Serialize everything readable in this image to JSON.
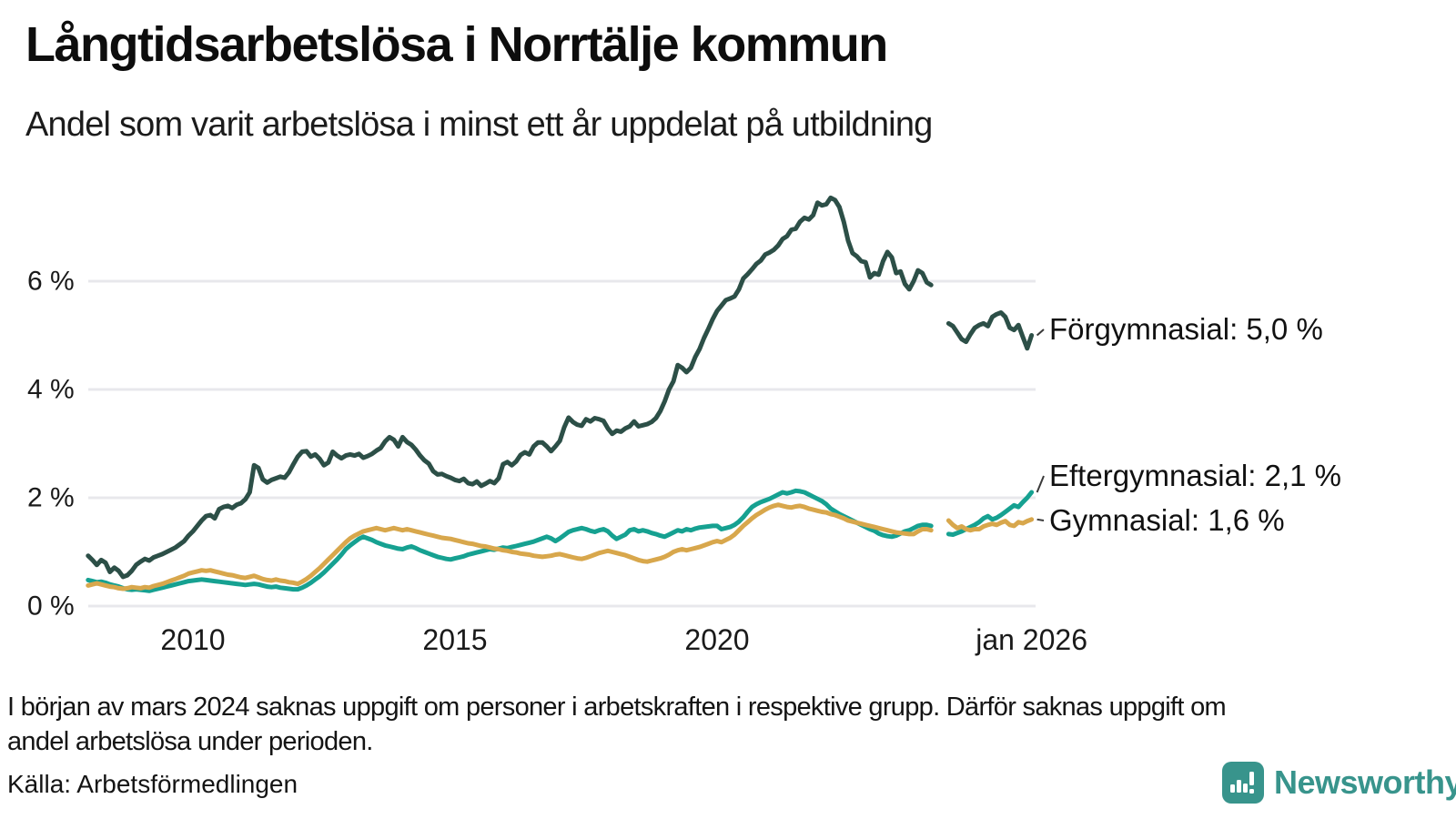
{
  "title": "Långtidsarbetslösa i Norrtälje kommun",
  "subtitle": "Andel som varit arbetslösa i minst ett år uppdelat på utbildning",
  "footnote": {
    "line1": "I början av mars 2024 saknas uppgift om personer i arbetskraften i respektive grupp. Därför saknas uppgift om",
    "line2": "andel arbetslösa under perioden."
  },
  "source": "Källa: Arbetsförmedlingen",
  "brand": {
    "name": "Newsworthy",
    "color": "#38948c"
  },
  "chart_data": {
    "type": "line",
    "title": "Långtidsarbetslösa i Norrtälje kommun",
    "subtitle": "Andel som varit arbetslösa i minst ett år uppdelat på utbildning",
    "x_unit": "month",
    "x_start": "2008-01",
    "x_end": "2026-01",
    "missing_period": "2024-03 till 2024-05",
    "ylim": [
      0,
      7.8
    ],
    "yticks": [
      0,
      2,
      4,
      6
    ],
    "ytick_labels": [
      "0 %",
      "2 %",
      "4 %",
      "6 %"
    ],
    "xticks": [
      {
        "year": 2010,
        "label": "2010"
      },
      {
        "year": 2015,
        "label": "2015"
      },
      {
        "year": 2020,
        "label": "2020"
      },
      {
        "year": 2026,
        "label": "jan 2026"
      }
    ],
    "grid": true,
    "legend_position": "right-end-labels",
    "gridline_color": "#e8e8ec",
    "series": [
      {
        "name": "Förgymnasial",
        "color": "#2c4f47",
        "end_label": "Förgymnasial: 5,0 %",
        "end_value_text": "5,0 %",
        "values": [
          0.93,
          0.85,
          0.76,
          0.85,
          0.8,
          0.63,
          0.71,
          0.65,
          0.54,
          0.57,
          0.65,
          0.76,
          0.82,
          0.87,
          0.84,
          0.9,
          0.93,
          0.96,
          1.0,
          1.04,
          1.08,
          1.14,
          1.2,
          1.3,
          1.38,
          1.48,
          1.58,
          1.66,
          1.68,
          1.62,
          1.79,
          1.83,
          1.85,
          1.81,
          1.87,
          1.9,
          1.97,
          2.1,
          2.6,
          2.55,
          2.34,
          2.28,
          2.33,
          2.36,
          2.39,
          2.37,
          2.47,
          2.62,
          2.76,
          2.85,
          2.86,
          2.76,
          2.8,
          2.72,
          2.6,
          2.65,
          2.85,
          2.78,
          2.73,
          2.78,
          2.8,
          2.78,
          2.81,
          2.74,
          2.77,
          2.81,
          2.87,
          2.92,
          3.04,
          3.12,
          3.07,
          2.95,
          3.12,
          3.03,
          2.98,
          2.89,
          2.78,
          2.69,
          2.63,
          2.49,
          2.43,
          2.44,
          2.4,
          2.37,
          2.33,
          2.31,
          2.35,
          2.27,
          2.25,
          2.3,
          2.22,
          2.26,
          2.31,
          2.27,
          2.36,
          2.62,
          2.66,
          2.6,
          2.67,
          2.79,
          2.84,
          2.8,
          2.95,
          3.02,
          3.02,
          2.95,
          2.86,
          2.95,
          3.05,
          3.3,
          3.48,
          3.4,
          3.35,
          3.33,
          3.45,
          3.41,
          3.47,
          3.45,
          3.42,
          3.28,
          3.18,
          3.24,
          3.22,
          3.28,
          3.32,
          3.41,
          3.32,
          3.34,
          3.36,
          3.4,
          3.47,
          3.6,
          3.78,
          4.0,
          4.15,
          4.45,
          4.4,
          4.32,
          4.4,
          4.6,
          4.75,
          4.95,
          5.12,
          5.3,
          5.45,
          5.55,
          5.65,
          5.68,
          5.72,
          5.85,
          6.05,
          6.13,
          6.22,
          6.32,
          6.38,
          6.49,
          6.53,
          6.58,
          6.66,
          6.78,
          6.83,
          6.95,
          6.97,
          7.1,
          7.17,
          7.14,
          7.22,
          7.45,
          7.4,
          7.42,
          7.54,
          7.5,
          7.37,
          7.1,
          6.75,
          6.52,
          6.46,
          6.37,
          6.35,
          6.07,
          6.15,
          6.12,
          6.37,
          6.54,
          6.44,
          6.15,
          6.18,
          5.95,
          5.85,
          6.0,
          6.2,
          6.15,
          5.98,
          5.93,
          null,
          null,
          null,
          5.22,
          5.17,
          5.05,
          4.93,
          4.88,
          5.02,
          5.14,
          5.19,
          5.22,
          5.17,
          5.34,
          5.39,
          5.42,
          5.34,
          5.14,
          5.1,
          5.19,
          4.97,
          4.76,
          5.0
        ]
      },
      {
        "name": "Eftergymnasial",
        "color": "#16a191",
        "end_label": "Eftergymnasial: 2,1 %",
        "end_value_text": "2,1 %",
        "values": [
          0.48,
          0.46,
          0.44,
          0.45,
          0.43,
          0.4,
          0.38,
          0.36,
          0.33,
          0.31,
          0.3,
          0.31,
          0.3,
          0.29,
          0.28,
          0.3,
          0.32,
          0.34,
          0.36,
          0.38,
          0.4,
          0.42,
          0.44,
          0.46,
          0.47,
          0.48,
          0.49,
          0.48,
          0.47,
          0.46,
          0.45,
          0.44,
          0.43,
          0.42,
          0.41,
          0.4,
          0.39,
          0.4,
          0.41,
          0.4,
          0.38,
          0.36,
          0.35,
          0.36,
          0.34,
          0.33,
          0.32,
          0.31,
          0.31,
          0.34,
          0.38,
          0.43,
          0.49,
          0.55,
          0.62,
          0.7,
          0.78,
          0.86,
          0.95,
          1.05,
          1.12,
          1.18,
          1.24,
          1.28,
          1.25,
          1.22,
          1.18,
          1.15,
          1.12,
          1.1,
          1.08,
          1.06,
          1.05,
          1.08,
          1.1,
          1.07,
          1.03,
          1.0,
          0.97,
          0.94,
          0.91,
          0.89,
          0.87,
          0.86,
          0.88,
          0.9,
          0.92,
          0.95,
          0.97,
          0.99,
          1.01,
          1.03,
          1.05,
          1.04,
          1.06,
          1.08,
          1.07,
          1.09,
          1.11,
          1.13,
          1.15,
          1.17,
          1.19,
          1.22,
          1.25,
          1.28,
          1.25,
          1.2,
          1.25,
          1.31,
          1.37,
          1.4,
          1.42,
          1.44,
          1.42,
          1.39,
          1.37,
          1.4,
          1.42,
          1.38,
          1.3,
          1.24,
          1.28,
          1.32,
          1.4,
          1.42,
          1.38,
          1.4,
          1.38,
          1.35,
          1.33,
          1.3,
          1.28,
          1.32,
          1.36,
          1.4,
          1.38,
          1.42,
          1.4,
          1.43,
          1.45,
          1.46,
          1.47,
          1.48,
          1.48,
          1.42,
          1.44,
          1.46,
          1.5,
          1.56,
          1.64,
          1.74,
          1.83,
          1.88,
          1.92,
          1.95,
          1.98,
          2.02,
          2.06,
          2.1,
          2.08,
          2.1,
          2.13,
          2.12,
          2.1,
          2.06,
          2.02,
          1.98,
          1.94,
          1.88,
          1.8,
          1.75,
          1.7,
          1.66,
          1.62,
          1.58,
          1.54,
          1.5,
          1.46,
          1.42,
          1.39,
          1.34,
          1.31,
          1.29,
          1.28,
          1.3,
          1.34,
          1.38,
          1.4,
          1.44,
          1.48,
          1.5,
          1.5,
          1.48,
          null,
          null,
          null,
          1.33,
          1.32,
          1.35,
          1.38,
          1.42,
          1.46,
          1.5,
          1.55,
          1.62,
          1.66,
          1.6,
          1.63,
          1.68,
          1.74,
          1.8,
          1.86,
          1.83,
          1.92,
          2.0,
          2.1
        ]
      },
      {
        "name": "Gymnasial",
        "color": "#d8a74c",
        "end_label": "Gymnasial: 1,6 %",
        "end_value_text": "1,6 %",
        "values": [
          0.38,
          0.4,
          0.42,
          0.4,
          0.38,
          0.36,
          0.35,
          0.33,
          0.32,
          0.33,
          0.35,
          0.34,
          0.33,
          0.35,
          0.34,
          0.37,
          0.39,
          0.41,
          0.44,
          0.47,
          0.5,
          0.53,
          0.56,
          0.6,
          0.62,
          0.64,
          0.66,
          0.65,
          0.66,
          0.64,
          0.62,
          0.6,
          0.58,
          0.57,
          0.55,
          0.53,
          0.52,
          0.54,
          0.56,
          0.53,
          0.5,
          0.48,
          0.47,
          0.49,
          0.47,
          0.46,
          0.44,
          0.43,
          0.41,
          0.45,
          0.5,
          0.56,
          0.63,
          0.7,
          0.78,
          0.86,
          0.94,
          1.02,
          1.1,
          1.18,
          1.25,
          1.3,
          1.34,
          1.38,
          1.4,
          1.42,
          1.44,
          1.42,
          1.4,
          1.42,
          1.44,
          1.42,
          1.4,
          1.42,
          1.4,
          1.38,
          1.36,
          1.34,
          1.32,
          1.3,
          1.28,
          1.26,
          1.25,
          1.24,
          1.22,
          1.2,
          1.18,
          1.16,
          1.15,
          1.13,
          1.11,
          1.1,
          1.08,
          1.06,
          1.05,
          1.03,
          1.02,
          1.0,
          0.99,
          0.97,
          0.96,
          0.95,
          0.93,
          0.92,
          0.91,
          0.92,
          0.93,
          0.95,
          0.96,
          0.94,
          0.92,
          0.9,
          0.88,
          0.87,
          0.89,
          0.92,
          0.95,
          0.98,
          1.0,
          1.02,
          1.0,
          0.98,
          0.96,
          0.94,
          0.91,
          0.88,
          0.85,
          0.83,
          0.82,
          0.84,
          0.86,
          0.88,
          0.91,
          0.95,
          1.0,
          1.03,
          1.05,
          1.03,
          1.05,
          1.07,
          1.09,
          1.12,
          1.15,
          1.18,
          1.2,
          1.18,
          1.22,
          1.26,
          1.32,
          1.4,
          1.48,
          1.55,
          1.62,
          1.68,
          1.73,
          1.78,
          1.82,
          1.85,
          1.87,
          1.85,
          1.83,
          1.82,
          1.84,
          1.85,
          1.83,
          1.8,
          1.78,
          1.76,
          1.74,
          1.73,
          1.7,
          1.68,
          1.65,
          1.62,
          1.58,
          1.56,
          1.54,
          1.52,
          1.5,
          1.48,
          1.46,
          1.44,
          1.42,
          1.4,
          1.38,
          1.36,
          1.35,
          1.34,
          1.33,
          1.33,
          1.38,
          1.42,
          1.42,
          1.4,
          null,
          null,
          null,
          1.58,
          1.5,
          1.44,
          1.47,
          1.42,
          1.4,
          1.42,
          1.42,
          1.47,
          1.5,
          1.52,
          1.5,
          1.54,
          1.57,
          1.5,
          1.48,
          1.55,
          1.53,
          1.57,
          1.6
        ]
      }
    ]
  }
}
